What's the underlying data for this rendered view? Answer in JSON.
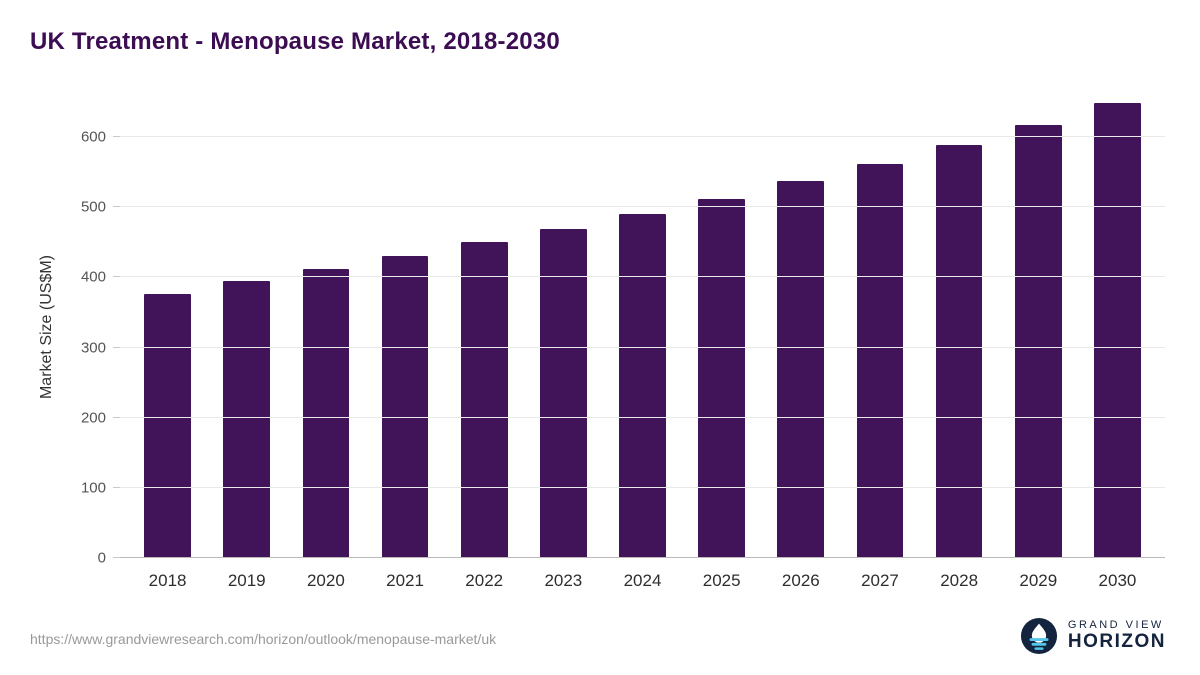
{
  "header": {
    "title": "UK Treatment - Menopause Market, 2018-2030"
  },
  "chart_data": {
    "type": "bar",
    "title": "UK Treatment - Menopause Market, 2018-2030",
    "categories": [
      "2018",
      "2019",
      "2020",
      "2021",
      "2022",
      "2023",
      "2024",
      "2025",
      "2026",
      "2027",
      "2028",
      "2029",
      "2030"
    ],
    "values": [
      377,
      395,
      412,
      431,
      450,
      469,
      490,
      512,
      537,
      561,
      589,
      617,
      648
    ],
    "xlabel": "",
    "ylabel": "Market Size (US$M)",
    "ylim": [
      0,
      660
    ],
    "yticks": [
      0,
      100,
      200,
      300,
      400,
      500,
      600
    ],
    "bar_color": "#411359",
    "grid": true,
    "legend": false
  },
  "footer": {
    "source_url": "https://www.grandviewresearch.com/horizon/outlook/menopause-market/uk",
    "logo": {
      "line1": "GRAND VIEW",
      "line2": "HORIZON",
      "icon": "grandview-horizon-globe-icon",
      "navy": "#15243e",
      "cyan": "#53c6ea"
    }
  },
  "colors": {
    "title": "#3c0d52",
    "bar": "#411359",
    "gridline": "#e9e9e9",
    "axis_text": "#555555"
  }
}
